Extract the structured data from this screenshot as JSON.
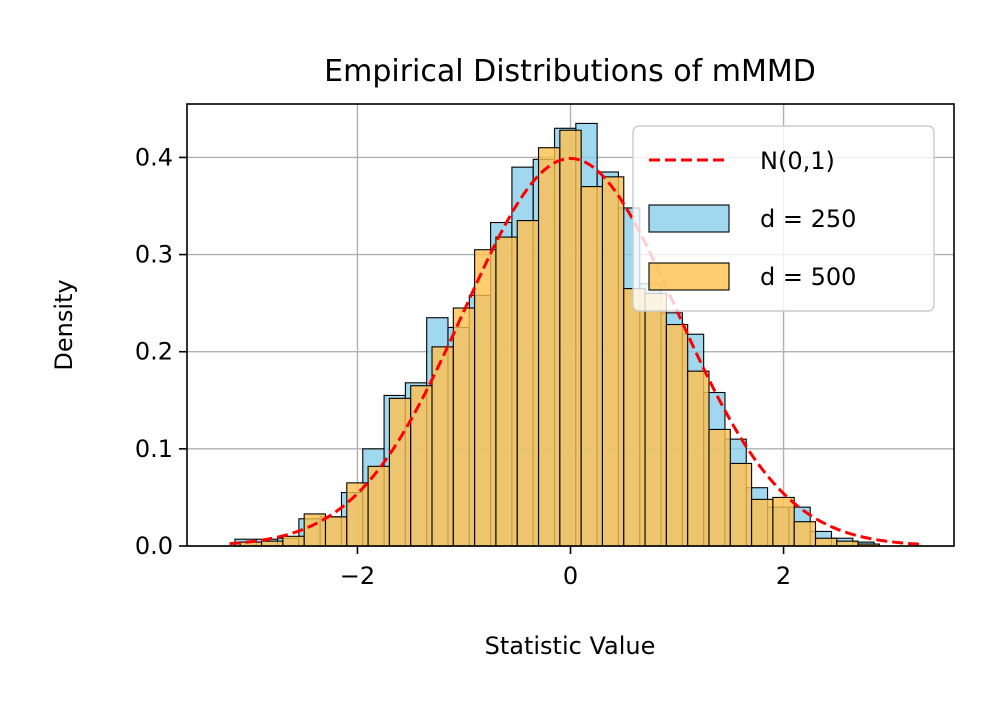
{
  "chart_data": {
    "type": "bar",
    "title": "Empirical Distributions of mMMD",
    "xlabel": "Statistic Value",
    "ylabel": "Density",
    "xlim": [
      -3.6,
      3.6
    ],
    "ylim": [
      0,
      0.455
    ],
    "xticks": [
      -2,
      0,
      2
    ],
    "xtick_labels": [
      "−2",
      "0",
      "2"
    ],
    "yticks": [
      0.0,
      0.1,
      0.2,
      0.3,
      0.4
    ],
    "ytick_labels": [
      "0.0",
      "0.1",
      "0.2",
      "0.3",
      "0.4"
    ],
    "grid": true,
    "legend_position": "top-right",
    "series": [
      {
        "name": "d = 250",
        "kind": "histogram",
        "color": "#87ceeb",
        "bin_edges": [
          -3.15,
          -2.95,
          -2.75,
          -2.55,
          -2.35,
          -2.15,
          -1.95,
          -1.75,
          -1.55,
          -1.35,
          -1.15,
          -0.95,
          -0.75,
          -0.55,
          -0.35,
          -0.15,
          0.05,
          0.25,
          0.45,
          0.65,
          0.85,
          1.05,
          1.25,
          1.45,
          1.65,
          1.85,
          2.05,
          2.25,
          2.45,
          2.65,
          2.85
        ],
        "values": [
          0.007,
          0.007,
          0.008,
          0.028,
          0.03,
          0.055,
          0.1,
          0.155,
          0.168,
          0.235,
          0.225,
          0.258,
          0.333,
          0.39,
          0.398,
          0.43,
          0.435,
          0.385,
          0.348,
          0.27,
          0.24,
          0.218,
          0.158,
          0.11,
          0.06,
          0.04,
          0.04,
          0.015,
          0.008,
          0.004
        ]
      },
      {
        "name": "d = 500",
        "kind": "histogram",
        "color": "#ffc04d",
        "bin_edges": [
          -3.1,
          -2.9,
          -2.7,
          -2.5,
          -2.3,
          -2.1,
          -1.9,
          -1.7,
          -1.5,
          -1.3,
          -1.1,
          -0.9,
          -0.7,
          -0.5,
          -0.3,
          -0.1,
          0.1,
          0.3,
          0.5,
          0.7,
          0.9,
          1.1,
          1.3,
          1.5,
          1.7,
          1.9,
          2.1,
          2.3,
          2.5,
          2.7,
          2.9
        ],
        "values": [
          0.004,
          0.005,
          0.01,
          0.033,
          0.03,
          0.065,
          0.082,
          0.152,
          0.165,
          0.205,
          0.245,
          0.305,
          0.318,
          0.335,
          0.41,
          0.428,
          0.37,
          0.38,
          0.265,
          0.26,
          0.228,
          0.18,
          0.12,
          0.085,
          0.048,
          0.05,
          0.025,
          0.008,
          0.005,
          0.002
        ]
      },
      {
        "name": "N(0,1)",
        "kind": "pdf-line",
        "color": "#ff0000",
        "dash": "dashed",
        "x_range": [
          -3.2,
          3.3
        ],
        "formula": "standard normal density"
      }
    ],
    "legend": [
      {
        "label": "N(0,1)",
        "kind": "line",
        "color": "#ff0000"
      },
      {
        "label": "d = 250",
        "kind": "patch",
        "color": "#87ceeb"
      },
      {
        "label": "d = 500",
        "kind": "patch",
        "color": "#ffc04d"
      }
    ]
  }
}
